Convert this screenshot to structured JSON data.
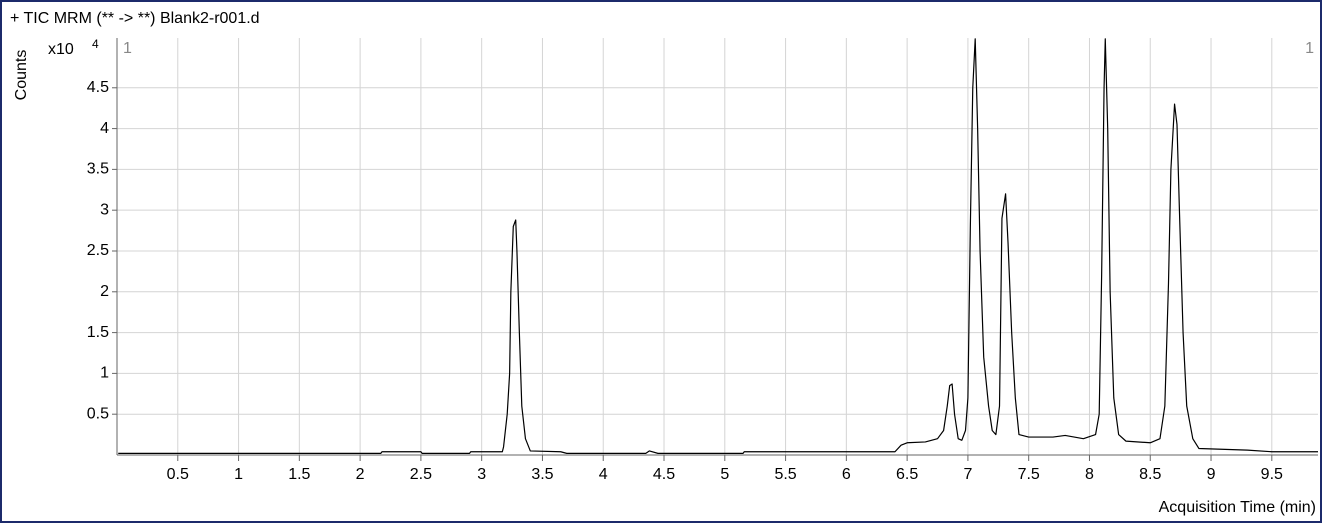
{
  "chart_data": {
    "type": "line",
    "title": "+ TIC MRM (** -> **) Blank2-r001.d",
    "y_label": "Counts",
    "y_multiplier": "x10",
    "y_exponent": "4",
    "x_label": "Acquisition Time (min)",
    "corner_labels": [
      "1",
      "1"
    ],
    "xlim": [
      0,
      9.88
    ],
    "ylim": [
      0,
      5.11
    ],
    "xticks": [
      0.5,
      1,
      1.5,
      2,
      2.5,
      3,
      3.5,
      4,
      4.5,
      5,
      5.5,
      6,
      6.5,
      7,
      7.5,
      8,
      8.5,
      9,
      9.5
    ],
    "yticks": [
      0.5,
      1,
      1.5,
      2,
      2.5,
      3,
      3.5,
      4,
      4.5
    ],
    "grid": true,
    "color": "#000000",
    "x": [
      0.01,
      2.17,
      2.18,
      2.5,
      2.51,
      2.9,
      2.91,
      3.17,
      3.18,
      3.21,
      3.23,
      3.24,
      3.26,
      3.28,
      3.29,
      3.31,
      3.33,
      3.36,
      3.4,
      3.65,
      3.7,
      4.35,
      4.38,
      4.45,
      5.15,
      5.16,
      6.4,
      6.45,
      6.5,
      6.65,
      6.75,
      6.8,
      6.83,
      6.85,
      6.87,
      6.89,
      6.92,
      6.95,
      6.98,
      7.0,
      7.02,
      7.04,
      7.06,
      7.08,
      7.1,
      7.13,
      7.17,
      7.2,
      7.23,
      7.26,
      7.28,
      7.31,
      7.33,
      7.36,
      7.39,
      7.42,
      7.5,
      7.7,
      7.8,
      7.95,
      8.05,
      8.08,
      8.1,
      8.12,
      8.13,
      8.15,
      8.17,
      8.2,
      8.24,
      8.3,
      8.5,
      8.58,
      8.62,
      8.65,
      8.67,
      8.7,
      8.72,
      8.74,
      8.77,
      8.8,
      8.85,
      8.9,
      9.3,
      9.5,
      9.88
    ],
    "values": [
      0.02,
      0.02,
      0.04,
      0.04,
      0.02,
      0.02,
      0.04,
      0.04,
      0.1,
      0.5,
      1.0,
      2.0,
      2.8,
      2.88,
      2.5,
      1.5,
      0.6,
      0.2,
      0.05,
      0.04,
      0.02,
      0.02,
      0.05,
      0.02,
      0.02,
      0.04,
      0.04,
      0.12,
      0.15,
      0.16,
      0.2,
      0.3,
      0.6,
      0.85,
      0.87,
      0.5,
      0.2,
      0.18,
      0.3,
      0.7,
      2.8,
      4.5,
      5.1,
      4.0,
      2.5,
      1.2,
      0.6,
      0.3,
      0.25,
      0.6,
      2.9,
      3.2,
      2.6,
      1.5,
      0.7,
      0.25,
      0.22,
      0.22,
      0.24,
      0.2,
      0.25,
      0.5,
      2.2,
      4.5,
      5.1,
      4.0,
      2.0,
      0.7,
      0.25,
      0.17,
      0.15,
      0.2,
      0.6,
      2.1,
      3.5,
      4.3,
      4.05,
      3.0,
      1.5,
      0.6,
      0.2,
      0.08,
      0.06,
      0.04,
      0.04
    ]
  }
}
